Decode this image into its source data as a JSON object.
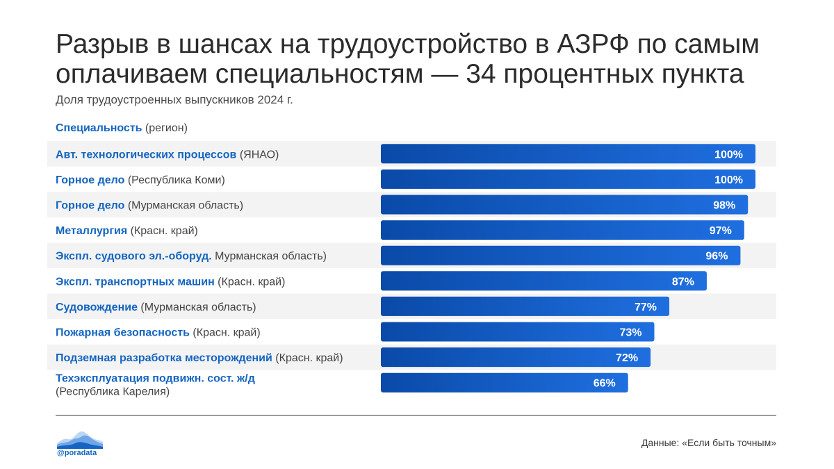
{
  "title": "Разрыв в шансах на трудоустройство в АЗРФ по самым оплачиваем специальностям — 34 процентных пункта",
  "subtitle": "Доля трудоустроенных выпускников 2024 г.",
  "column_header": {
    "bold": "Специальность",
    "light": " (регион)"
  },
  "source": "Данные: «Если быть точным»",
  "handle": "@poradata",
  "colors": {
    "bar_start": "#0a4aa8",
    "bar_end": "#1f6fe0",
    "stripe": "#f3f3f3",
    "label_bold": "#1565c0",
    "value_text": "#ffffff"
  },
  "chart_data": {
    "type": "bar",
    "orientation": "horizontal",
    "xlim": [
      0,
      100
    ],
    "categories": [
      {
        "name": "Авт. технологических процессов",
        "region": " (ЯНАО)"
      },
      {
        "name": "Горное дело",
        "region": " (Республика Коми)"
      },
      {
        "name": "Горное дело",
        "region": " (Мурманская область)"
      },
      {
        "name": "Металлургия",
        "region": " (Красн. край)"
      },
      {
        "name": "Экспл. судового эл.-оборуд.",
        "region": " Мурманская область)"
      },
      {
        "name": "Экспл. транспортных машин",
        "region": " (Красн. край)"
      },
      {
        "name": "Судовождение",
        "region": " (Мурманская область)"
      },
      {
        "name": "Пожарная безопасность",
        "region": " (Красн. край)"
      },
      {
        "name": "Подземная разработка месторождений",
        "region": " (Красн. край)"
      },
      {
        "name": "Техэксплуатация подвижн. сост. ж/д",
        "region": "(Республика Карелия)"
      }
    ],
    "values": [
      100,
      100,
      98,
      97,
      96,
      87,
      77,
      73,
      72,
      66
    ],
    "value_labels": [
      "100%",
      "100%",
      "98%",
      "97%",
      "96%",
      "87%",
      "77%",
      "73%",
      "72%",
      "66%"
    ]
  }
}
